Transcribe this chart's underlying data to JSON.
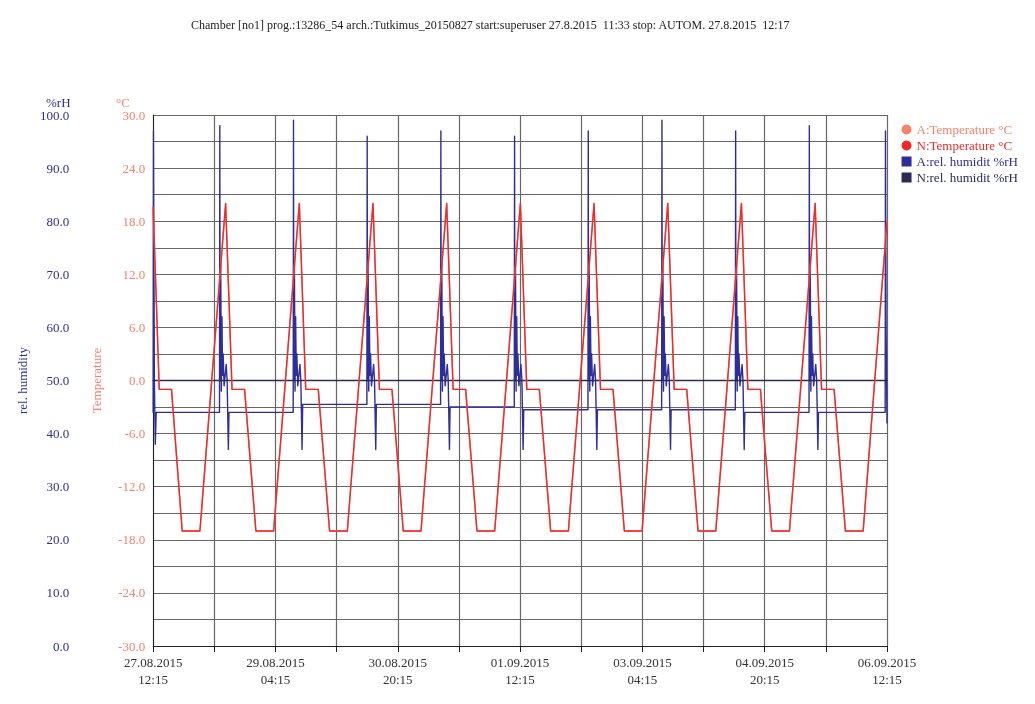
{
  "chart_data": {
    "type": "line",
    "title": "Chamber [no1] prog.:13286_54 arch.:Tutkimus_20150827 start:superuser 27.8.2015  11:33 stop: AUTOM. 27.8.2015  12:17",
    "ylabel": "rel. humidity",
    "y2label": "Temperature",
    "annotations": [
      "%rH",
      "°C"
    ],
    "xlim": [
      "2015-08-27T12:15",
      "2015-09-06T12:15"
    ],
    "xticks": [
      {
        "value": "2015-08-27T12:15",
        "label": "27.08.2015\n12:15"
      },
      {
        "value": "2015-08-28T08:15",
        "label": null
      },
      {
        "value": "2015-08-29T04:15",
        "label": "29.08.2015\n04:15"
      },
      {
        "value": "2015-08-30T00:15",
        "label": null
      },
      {
        "value": "2015-08-30T20:15",
        "label": "30.08.2015\n20:15"
      },
      {
        "value": "2015-08-31T16:15",
        "label": null
      },
      {
        "value": "2015-09-01T12:15",
        "label": "01.09.2015\n12:15"
      },
      {
        "value": "2015-09-02T08:15",
        "label": null
      },
      {
        "value": "2015-09-03T04:15",
        "label": "03.09.2015\n04:15"
      },
      {
        "value": "2015-09-04T00:15",
        "label": null
      },
      {
        "value": "2015-09-04T20:15",
        "label": "04.09.2015\n20:15"
      },
      {
        "value": "2015-09-05T16:15",
        "label": null
      },
      {
        "value": "2015-09-06T12:15",
        "label": "06.09.2015\n12:15"
      }
    ],
    "ylim": [
      0,
      100
    ],
    "yticks": [
      {
        "value": 0,
        "label": "0.0"
      },
      {
        "value": 5,
        "label": null
      },
      {
        "value": 10,
        "label": "10.0"
      },
      {
        "value": 15,
        "label": null
      },
      {
        "value": 20,
        "label": "20.0"
      },
      {
        "value": 25,
        "label": null
      },
      {
        "value": 30,
        "label": "30.0"
      },
      {
        "value": 35,
        "label": null
      },
      {
        "value": 40,
        "label": "40.0"
      },
      {
        "value": 45,
        "label": null
      },
      {
        "value": 50,
        "label": "50.0"
      },
      {
        "value": 55,
        "label": null
      },
      {
        "value": 60,
        "label": "60.0"
      },
      {
        "value": 65,
        "label": null
      },
      {
        "value": 70,
        "label": "70.0"
      },
      {
        "value": 75,
        "label": null
      },
      {
        "value": 80,
        "label": "80.0"
      },
      {
        "value": 85,
        "label": null
      },
      {
        "value": 90,
        "label": "90.0"
      },
      {
        "value": 95,
        "label": null
      },
      {
        "value": 100,
        "label": "100.0"
      }
    ],
    "y2lim": [
      -30,
      30
    ],
    "y2ticks": [
      {
        "value": -30,
        "label": "-30.0"
      },
      {
        "value": -27,
        "label": null
      },
      {
        "value": -24,
        "label": "-24.0"
      },
      {
        "value": -21,
        "label": null
      },
      {
        "value": -18,
        "label": "-18.0"
      },
      {
        "value": -15,
        "label": null
      },
      {
        "value": -12,
        "label": "-12.0"
      },
      {
        "value": -9,
        "label": null
      },
      {
        "value": -6,
        "label": "-6.0"
      },
      {
        "value": -3,
        "label": null
      },
      {
        "value": 0,
        "label": "0.0"
      },
      {
        "value": 3,
        "label": null
      },
      {
        "value": 6,
        "label": "6.0"
      },
      {
        "value": 9,
        "label": null
      },
      {
        "value": 12,
        "label": "12.0"
      },
      {
        "value": 15,
        "label": null
      },
      {
        "value": 18,
        "label": "18.0"
      },
      {
        "value": 21,
        "label": null
      },
      {
        "value": 24,
        "label": "24.0"
      },
      {
        "value": 27,
        "label": null
      },
      {
        "value": 30,
        "label": "30.0"
      }
    ],
    "grid": true,
    "legend": "right",
    "marker": "none",
    "line_style": "solid",
    "series": [
      {
        "name": "A:Temperature °C",
        "color": "#f4826e",
        "axis": "y2",
        "x": [
          "2015-08-27T12:15",
          "2015-08-27T14:15",
          "2015-08-27T18:15",
          "2015-08-27T21:45",
          "2015-08-28T03:33",
          "2015-08-28T11:57",
          "2015-08-28T14:03",
          "2015-08-28T18:09",
          "2015-08-28T21:51",
          "2015-08-29T03:39",
          "2015-08-29T12:03",
          "2015-08-29T14:09",
          "2015-08-29T18:15",
          "2015-08-29T21:57",
          "2015-08-30T03:45",
          "2015-08-30T12:09",
          "2015-08-30T14:15",
          "2015-08-30T18:21",
          "2015-08-30T22:03",
          "2015-08-31T03:51",
          "2015-08-31T12:15",
          "2015-08-31T14:21",
          "2015-08-31T18:27",
          "2015-08-31T22:09",
          "2015-09-01T03:57",
          "2015-09-01T12:21",
          "2015-09-01T14:27",
          "2015-09-01T18:33",
          "2015-09-01T22:15",
          "2015-09-02T04:03",
          "2015-09-02T12:27",
          "2015-09-02T14:33",
          "2015-09-02T18:39",
          "2015-09-02T22:21",
          "2015-09-03T04:09",
          "2015-09-03T12:33",
          "2015-09-03T14:39",
          "2015-09-03T18:45",
          "2015-09-03T22:27",
          "2015-09-04T04:15",
          "2015-09-04T12:39",
          "2015-09-04T14:45",
          "2015-09-04T18:51",
          "2015-09-04T22:33",
          "2015-09-05T04:21",
          "2015-09-05T12:45",
          "2015-09-05T14:51",
          "2015-09-05T18:57",
          "2015-09-05T22:39",
          "2015-09-06T04:27",
          "2015-09-06T12:15"
        ],
        "values": [
          19.6,
          -1,
          -1,
          -17,
          -17,
          20,
          -1,
          -1,
          -17,
          -17,
          20,
          -1,
          -1,
          -17,
          -17,
          20,
          -1,
          -1,
          -17,
          -17,
          20,
          -1,
          -1,
          -17,
          -17,
          20,
          -1,
          -1,
          -17,
          -17,
          20,
          -1,
          -1,
          -17,
          -17,
          20,
          -1,
          -1,
          -17,
          -17,
          20,
          -1,
          -1,
          -17,
          -17,
          20,
          -1,
          -1,
          -17,
          -17,
          18
        ]
      },
      {
        "name": "N:Temperature °C",
        "color": "#ee2a2a",
        "axis": "y2",
        "x": [
          "2015-08-27T12:15",
          "2015-08-27T14:15",
          "2015-08-27T18:15",
          "2015-08-27T21:45",
          "2015-08-28T03:33",
          "2015-08-28T11:57",
          "2015-08-28T14:03",
          "2015-08-28T18:09",
          "2015-08-28T21:51",
          "2015-08-29T03:39",
          "2015-08-29T12:03",
          "2015-08-29T14:09",
          "2015-08-29T18:15",
          "2015-08-29T21:57",
          "2015-08-30T03:45",
          "2015-08-30T12:09",
          "2015-08-30T14:15",
          "2015-08-30T18:21",
          "2015-08-30T22:03",
          "2015-08-31T03:51",
          "2015-08-31T12:15",
          "2015-08-31T14:21",
          "2015-08-31T18:27",
          "2015-08-31T22:09",
          "2015-09-01T03:57",
          "2015-09-01T12:21",
          "2015-09-01T14:27",
          "2015-09-01T18:33",
          "2015-09-01T22:15",
          "2015-09-02T04:03",
          "2015-09-02T12:27",
          "2015-09-02T14:33",
          "2015-09-02T18:39",
          "2015-09-02T22:21",
          "2015-09-03T04:09",
          "2015-09-03T12:33",
          "2015-09-03T14:39",
          "2015-09-03T18:45",
          "2015-09-03T22:27",
          "2015-09-04T04:15",
          "2015-09-04T12:39",
          "2015-09-04T14:45",
          "2015-09-04T18:51",
          "2015-09-04T22:33",
          "2015-09-05T04:21",
          "2015-09-05T12:45",
          "2015-09-05T14:51",
          "2015-09-05T18:57",
          "2015-09-05T22:39",
          "2015-09-06T04:27",
          "2015-09-06T12:15"
        ],
        "values": [
          19.6,
          -1,
          -1,
          -17,
          -17,
          20,
          -1,
          -1,
          -17,
          -17,
          20,
          -1,
          -1,
          -17,
          -17,
          20,
          -1,
          -1,
          -17,
          -17,
          20,
          -1,
          -1,
          -17,
          -17,
          20,
          -1,
          -1,
          -17,
          -17,
          20,
          -1,
          -1,
          -17,
          -17,
          20,
          -1,
          -1,
          -17,
          -17,
          20,
          -1,
          -1,
          -17,
          -17,
          20,
          -1,
          -1,
          -17,
          -17,
          18
        ]
      },
      {
        "name": "A:rel. humidit %rH",
        "color": "#2e2e9a",
        "x": [
          "2015-08-27T12:15",
          "2015-08-27T12:21",
          "2015-08-27T12:39",
          "2015-08-27T12:57",
          "2015-08-27T13:15",
          "2015-08-28T09:57",
          "2015-08-28T10:03",
          "2015-08-28T10:09",
          "2015-08-28T10:21",
          "2015-08-28T10:33",
          "2015-08-28T10:45",
          "2015-08-28T10:57",
          "2015-08-28T11:09",
          "2015-08-28T11:27",
          "2015-08-28T12:09",
          "2015-08-28T12:27",
          "2015-08-28T12:51",
          "2015-08-28T13:03",
          "2015-08-29T10:03",
          "2015-08-29T10:09",
          "2015-08-29T10:15",
          "2015-08-29T10:27",
          "2015-08-29T10:39",
          "2015-08-29T10:51",
          "2015-08-29T11:03",
          "2015-08-29T11:15",
          "2015-08-29T11:33",
          "2015-08-29T12:15",
          "2015-08-29T12:33",
          "2015-08-29T12:57",
          "2015-08-29T13:09",
          "2015-08-30T10:09",
          "2015-08-30T10:15",
          "2015-08-30T10:21",
          "2015-08-30T10:33",
          "2015-08-30T10:45",
          "2015-08-30T10:57",
          "2015-08-30T11:09",
          "2015-08-30T11:21",
          "2015-08-30T11:39",
          "2015-08-30T12:21",
          "2015-08-30T12:39",
          "2015-08-30T13:03",
          "2015-08-30T13:15",
          "2015-08-31T10:15",
          "2015-08-31T10:21",
          "2015-08-31T10:27",
          "2015-08-31T10:39",
          "2015-08-31T10:51",
          "2015-08-31T11:03",
          "2015-08-31T11:15",
          "2015-08-31T11:27",
          "2015-08-31T11:45",
          "2015-08-31T12:27",
          "2015-08-31T12:45",
          "2015-08-31T13:09",
          "2015-08-31T13:21",
          "2015-09-01T10:21",
          "2015-09-01T10:27",
          "2015-09-01T10:33",
          "2015-09-01T10:45",
          "2015-09-01T10:57",
          "2015-09-01T11:09",
          "2015-09-01T11:21",
          "2015-09-01T11:33",
          "2015-09-01T11:51",
          "2015-09-01T12:33",
          "2015-09-01T12:51",
          "2015-09-01T13:15",
          "2015-09-01T13:27",
          "2015-09-02T10:27",
          "2015-09-02T10:33",
          "2015-09-02T10:39",
          "2015-09-02T10:51",
          "2015-09-02T11:03",
          "2015-09-02T11:15",
          "2015-09-02T11:27",
          "2015-09-02T11:39",
          "2015-09-02T11:57",
          "2015-09-02T12:39",
          "2015-09-02T12:57",
          "2015-09-02T13:21",
          "2015-09-02T13:33",
          "2015-09-03T10:33",
          "2015-09-03T10:39",
          "2015-09-03T10:45",
          "2015-09-03T10:57",
          "2015-09-03T11:09",
          "2015-09-03T11:21",
          "2015-09-03T11:33",
          "2015-09-03T11:45",
          "2015-09-03T12:03",
          "2015-09-03T12:45",
          "2015-09-03T13:03",
          "2015-09-03T13:27",
          "2015-09-03T13:39",
          "2015-09-04T10:39",
          "2015-09-04T10:45",
          "2015-09-04T10:51",
          "2015-09-04T11:03",
          "2015-09-04T11:15",
          "2015-09-04T11:27",
          "2015-09-04T11:39",
          "2015-09-04T11:51",
          "2015-09-04T12:09",
          "2015-09-04T12:51",
          "2015-09-04T13:09",
          "2015-09-04T13:33",
          "2015-09-04T13:45",
          "2015-09-05T10:45",
          "2015-09-05T10:51",
          "2015-09-05T10:57",
          "2015-09-05T11:09",
          "2015-09-05T11:21",
          "2015-09-05T11:33",
          "2015-09-05T11:45",
          "2015-09-05T11:57",
          "2015-09-05T12:15",
          "2015-09-05T12:57",
          "2015-09-05T13:15",
          "2015-09-05T13:39",
          "2015-09-05T13:51",
          "2015-09-06T11:39",
          "2015-09-06T11:45",
          "2015-09-06T11:57",
          "2015-09-06T12:15"
        ],
        "values": [
          44,
          97,
          50,
          38,
          44,
          44,
          98,
          50,
          72,
          48,
          62,
          51,
          55,
          49,
          53,
          50,
          37,
          44,
          44,
          99,
          50,
          72,
          48,
          62,
          51,
          55,
          49,
          53,
          50,
          37,
          45.5,
          45.5,
          96,
          50,
          72,
          48,
          62,
          51,
          55,
          49,
          53,
          50,
          37,
          45.5,
          45.5,
          97,
          50,
          72,
          48,
          62,
          51,
          55,
          49,
          53,
          50,
          37,
          45,
          45,
          96,
          50,
          72,
          48,
          62,
          51,
          55,
          49,
          53,
          50,
          37,
          44.5,
          44.5,
          97,
          50,
          72,
          48,
          62,
          51,
          55,
          49,
          53,
          50,
          37,
          44.5,
          44.5,
          99,
          50,
          72,
          48,
          62,
          51,
          55,
          49,
          53,
          50,
          37,
          44.5,
          44.5,
          97,
          50,
          72,
          48,
          62,
          51,
          55,
          49,
          53,
          50,
          37,
          44,
          44,
          98,
          50,
          72,
          48,
          62,
          51,
          55,
          49,
          53,
          50,
          37,
          44,
          44,
          97,
          60,
          42
        ]
      },
      {
        "name": "N:rel. humidit %rH",
        "color": "#2b2b55",
        "x": [
          "2015-08-27T12:15",
          "2015-09-06T12:15"
        ],
        "values": [
          50,
          50
        ]
      }
    ]
  }
}
